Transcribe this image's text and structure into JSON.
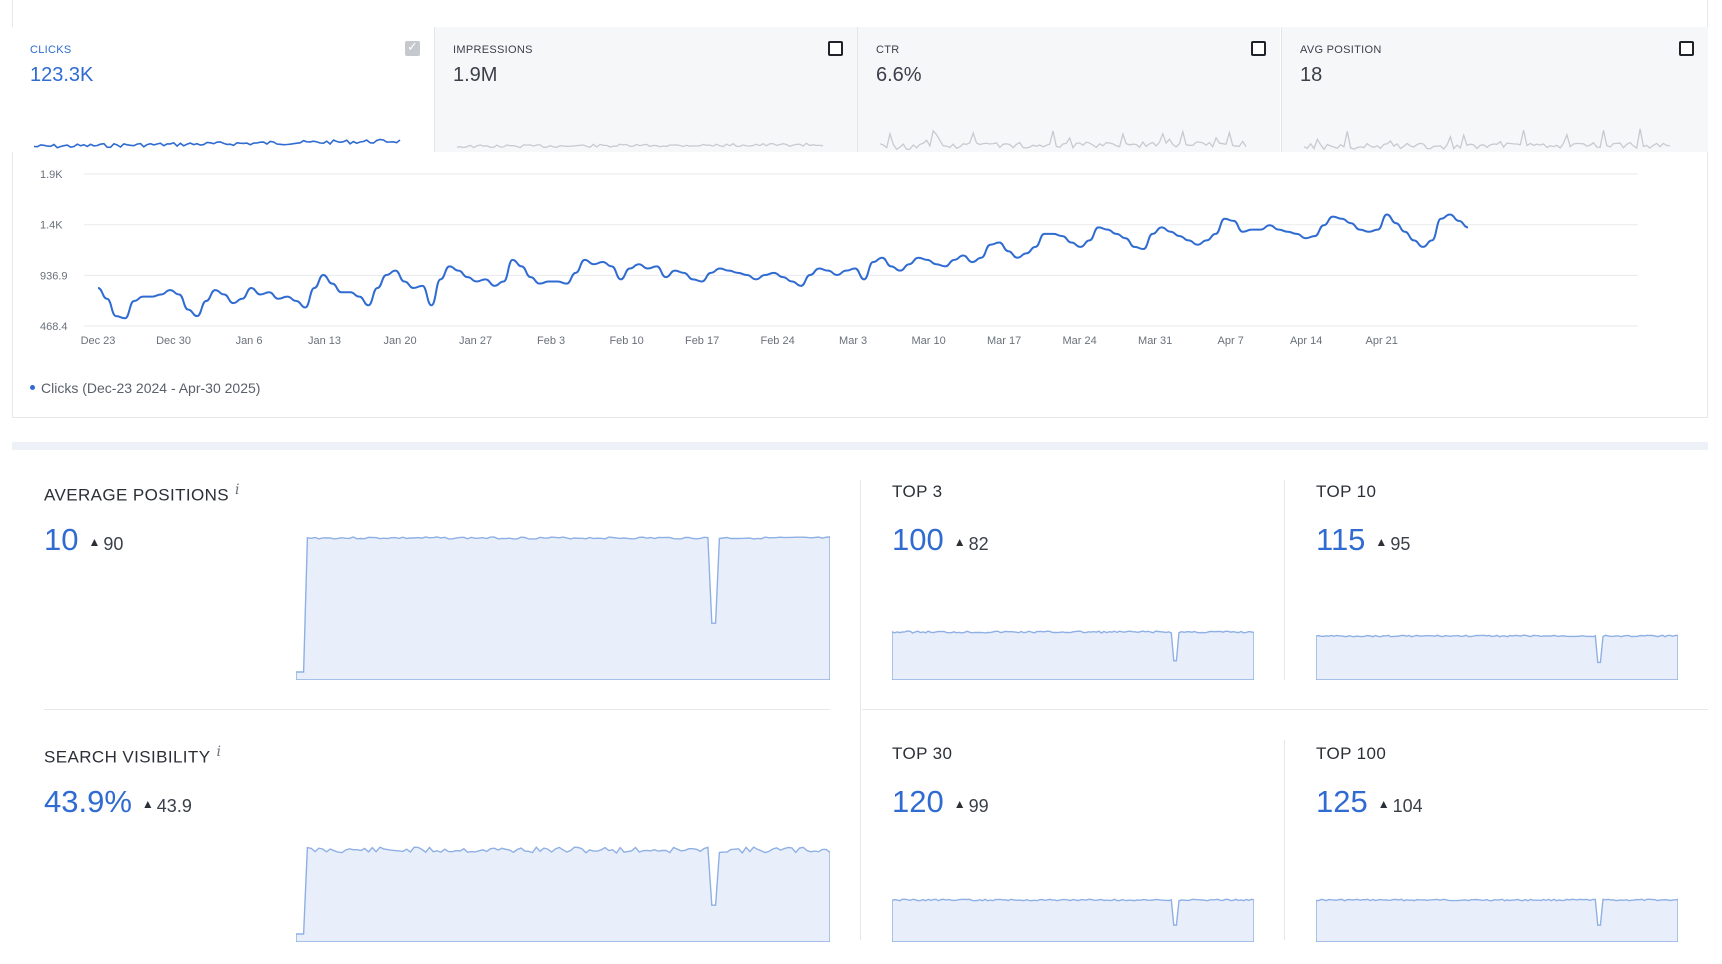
{
  "metrics": [
    {
      "label": "CLICKS",
      "value": "123.3K",
      "checked": true
    },
    {
      "label": "IMPRESSIONS",
      "value": "1.9M",
      "checked": false
    },
    {
      "label": "CTR",
      "value": "6.6%",
      "checked": false
    },
    {
      "label": "AVG POSITION",
      "value": "18",
      "checked": false
    }
  ],
  "chart_data": {
    "type": "line",
    "title": "",
    "series_name": "Clicks (Dec-23 2024 - Apr-30 2025)",
    "y_ticks": [
      "1.9K",
      "1.4K",
      "936.9",
      "468.4"
    ],
    "y_tick_values": [
      1874,
      1405,
      936.9,
      468.4
    ],
    "ylim": [
      468.4,
      1874
    ],
    "x_ticks": [
      "Dec 23",
      "Dec 30",
      "Jan 6",
      "Jan 13",
      "Jan 20",
      "Jan 27",
      "Feb 3",
      "Feb 10",
      "Feb 17",
      "Feb 24",
      "Mar 3",
      "Mar 10",
      "Mar 17",
      "Mar 24",
      "Mar 31",
      "Apr 7",
      "Apr 14",
      "Apr 21"
    ],
    "x_tick_day_index": [
      0,
      7,
      14,
      21,
      28,
      35,
      42,
      49,
      56,
      63,
      70,
      77,
      84,
      91,
      98,
      105,
      112,
      119
    ],
    "values": [
      820,
      720,
      560,
      540,
      700,
      740,
      740,
      760,
      800,
      760,
      620,
      560,
      700,
      800,
      760,
      680,
      720,
      820,
      760,
      780,
      720,
      740,
      700,
      640,
      820,
      940,
      860,
      780,
      780,
      740,
      660,
      820,
      940,
      980,
      880,
      820,
      840,
      660,
      900,
      1020,
      980,
      920,
      880,
      900,
      840,
      880,
      1080,
      1020,
      920,
      860,
      880,
      880,
      860,
      960,
      1080,
      1040,
      1060,
      1020,
      900,
      1000,
      1040,
      1000,
      1020,
      920,
      980,
      960,
      900,
      880,
      960,
      1000,
      980,
      960,
      940,
      900,
      940,
      960,
      920,
      880,
      840,
      940,
      1000,
      980,
      940,
      980,
      1000,
      900,
      1060,
      1100,
      1020,
      980,
      1040,
      1100,
      1080,
      1040,
      1020,
      1080,
      1120,
      1060,
      1100,
      1220,
      1240,
      1160,
      1100,
      1140,
      1200,
      1320,
      1320,
      1300,
      1240,
      1200,
      1260,
      1380,
      1360,
      1320,
      1280,
      1200,
      1180,
      1320,
      1380,
      1340,
      1300,
      1260,
      1220,
      1260,
      1320,
      1460,
      1440,
      1340,
      1360,
      1360,
      1400,
      1360,
      1340,
      1320,
      1280,
      1300,
      1400,
      1480,
      1460,
      1420,
      1360,
      1340,
      1360,
      1500,
      1420,
      1340,
      1260,
      1200,
      1260,
      1460,
      1500,
      1440,
      1380
    ]
  },
  "kpis": {
    "avg_positions": {
      "title": "AVERAGE POSITIONS",
      "info": "i",
      "value": "10",
      "delta": "90"
    },
    "search_visibility": {
      "title": "SEARCH VISIBILITY",
      "info": "i",
      "value": "43.9%",
      "delta": "43.9"
    },
    "top3": {
      "title": "TOP 3",
      "value": "100",
      "delta": "82"
    },
    "top10": {
      "title": "TOP 10",
      "value": "115",
      "delta": "95"
    },
    "top30": {
      "title": "TOP 30",
      "value": "120",
      "delta": "99"
    },
    "top100": {
      "title": "TOP 100",
      "value": "125",
      "delta": "104"
    }
  },
  "colors": {
    "accent": "#2f6bd1",
    "area_fill": "#e9effa",
    "area_line": "#8fb0e4",
    "grid": "#e8eaee",
    "muted_line": "#c7cad0"
  }
}
